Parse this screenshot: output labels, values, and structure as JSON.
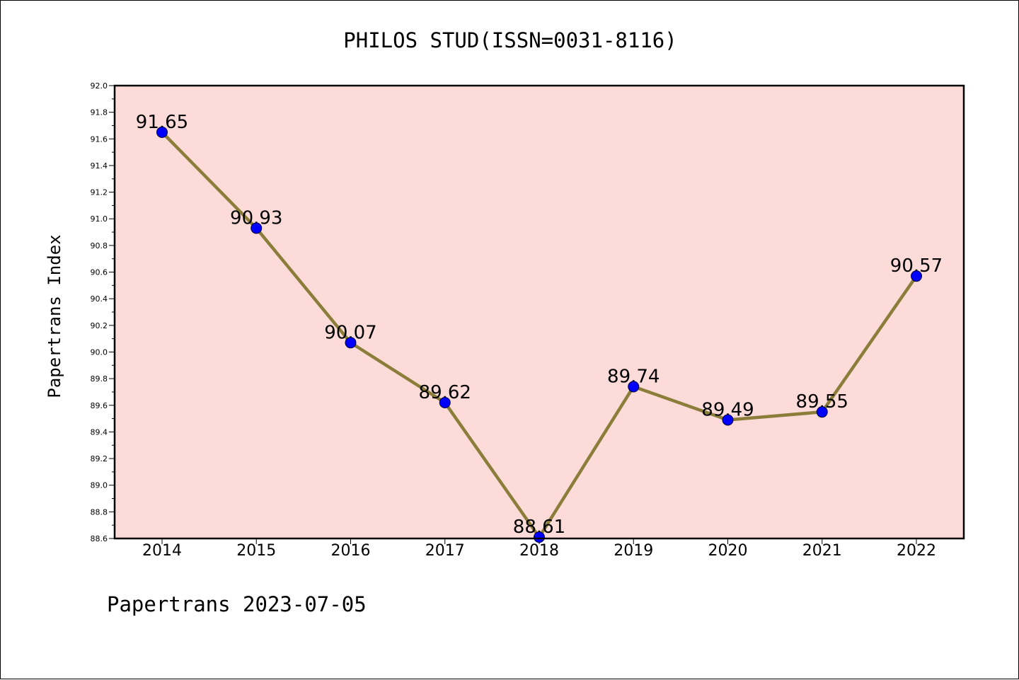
{
  "footer": "Papertrans 2023-07-05",
  "colors": {
    "plot_background": "#fddbd9",
    "line": "#8b7d3a",
    "marker": "#0000ff",
    "frame": "#000000"
  },
  "chart_data": {
    "type": "line",
    "title": "PHILOS STUD(ISSN=0031-8116)",
    "xlabel": "",
    "ylabel": "Papertrans Index",
    "categories": [
      "2014",
      "2015",
      "2016",
      "2017",
      "2018",
      "2019",
      "2020",
      "2021",
      "2022"
    ],
    "values": [
      91.65,
      90.93,
      90.07,
      89.62,
      88.61,
      89.74,
      89.49,
      89.55,
      90.57
    ],
    "data_labels": [
      "91.65",
      "90.93",
      "90.07",
      "89.62",
      "88.61",
      "89.74",
      "89.49",
      "89.55",
      "90.57"
    ],
    "ylim": [
      88.6,
      92.0
    ],
    "yticks": [
      "88.6",
      "88.8",
      "89.0",
      "89.2",
      "89.4",
      "89.6",
      "89.8",
      "90.0",
      "90.2",
      "90.4",
      "90.6",
      "90.8",
      "91.0",
      "91.2",
      "91.4",
      "91.6",
      "91.8",
      "92.0"
    ],
    "grid": false,
    "legend": "none"
  }
}
